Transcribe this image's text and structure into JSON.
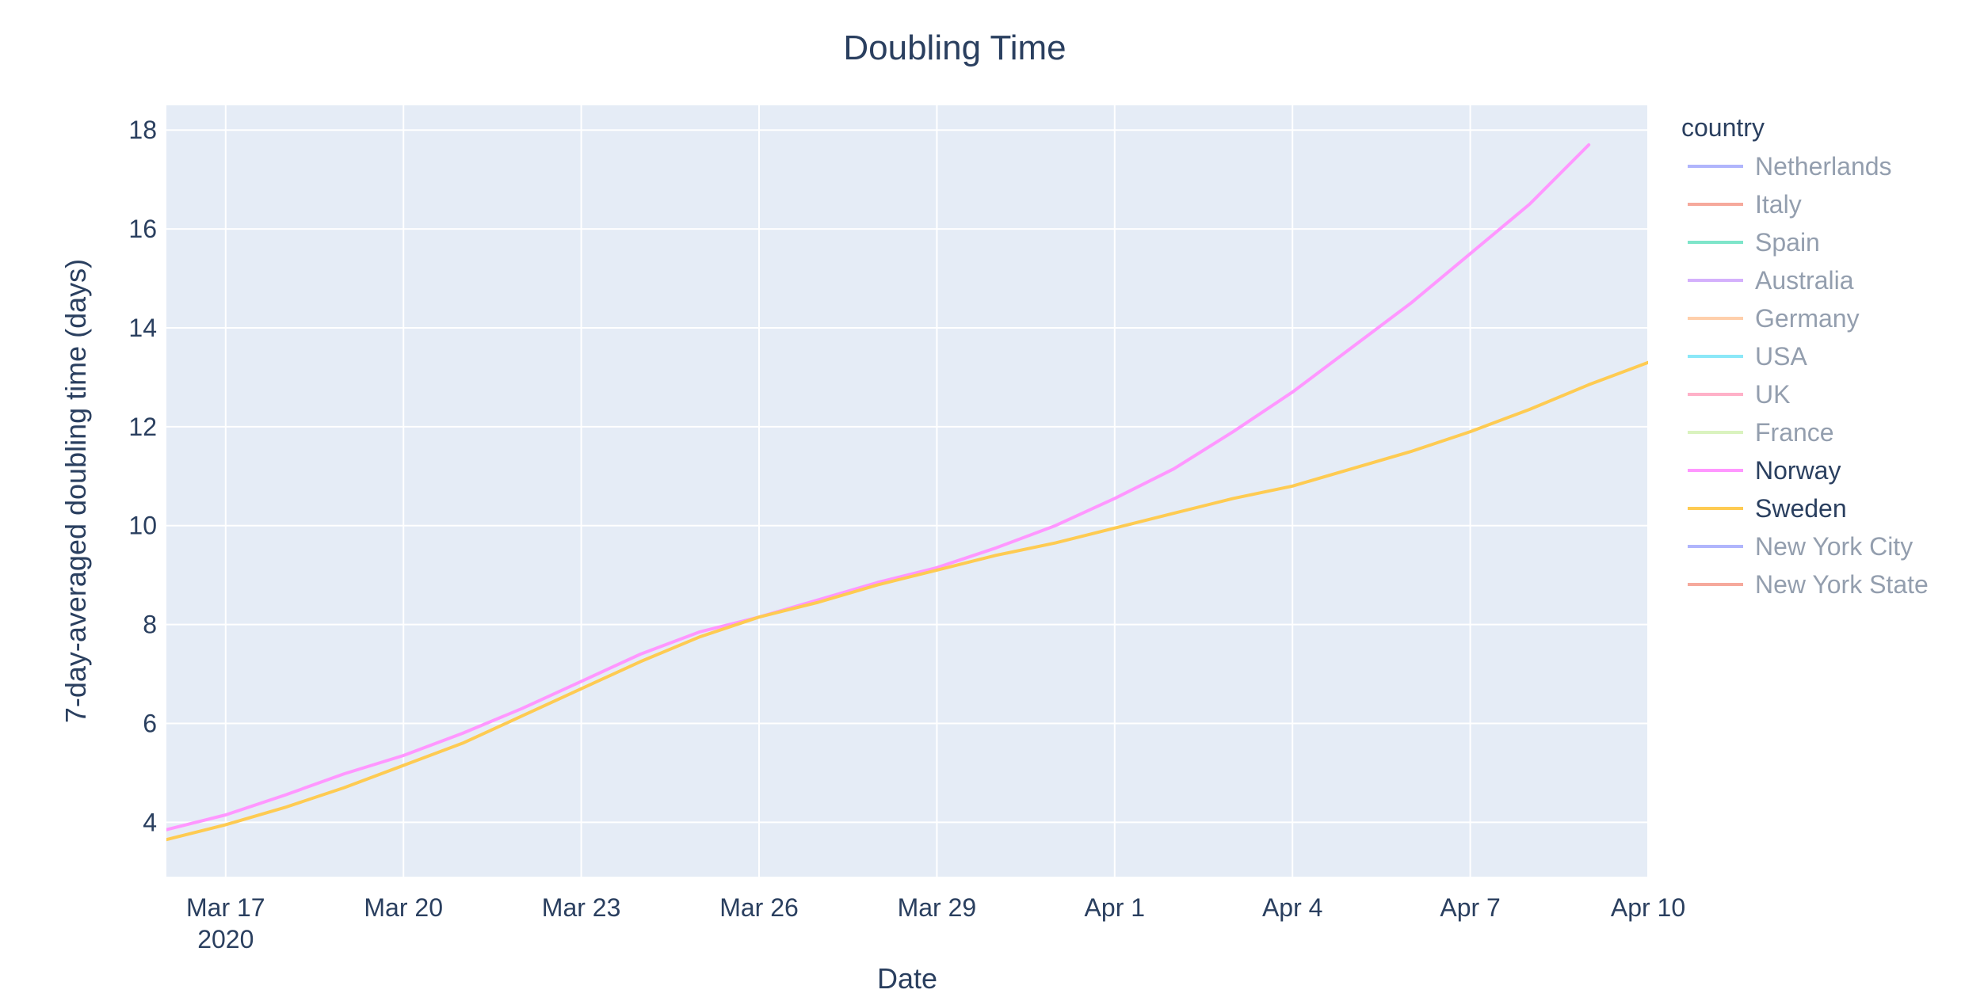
{
  "chart_data": {
    "type": "line",
    "title": "Doubling Time",
    "xlabel": "Date",
    "ylabel": "7-day-averaged doubling time (days)",
    "xlim": [
      "2020-03-16",
      "2020-04-10"
    ],
    "ylim": [
      2.9,
      18.5
    ],
    "x_ticks": [
      {
        "date": "2020-03-17",
        "label": "Mar 17",
        "sublabel": "2020"
      },
      {
        "date": "2020-03-20",
        "label": "Mar 20"
      },
      {
        "date": "2020-03-23",
        "label": "Mar 23"
      },
      {
        "date": "2020-03-26",
        "label": "Mar 26"
      },
      {
        "date": "2020-03-29",
        "label": "Mar 29"
      },
      {
        "date": "2020-04-01",
        "label": "Apr 1"
      },
      {
        "date": "2020-04-04",
        "label": "Apr 4"
      },
      {
        "date": "2020-04-07",
        "label": "Apr 7"
      },
      {
        "date": "2020-04-10",
        "label": "Apr 10"
      }
    ],
    "y_ticks": [
      4,
      6,
      8,
      10,
      12,
      14,
      16,
      18
    ],
    "grid": true,
    "background": "#e5ecf6",
    "legend": {
      "title": "country",
      "placement": "right",
      "entries": [
        {
          "name": "Netherlands",
          "color": "#636efa",
          "visible": false
        },
        {
          "name": "Italy",
          "color": "#ef553b",
          "visible": false
        },
        {
          "name": "Spain",
          "color": "#00cc96",
          "visible": false
        },
        {
          "name": "Australia",
          "color": "#ab63fa",
          "visible": false
        },
        {
          "name": "Germany",
          "color": "#ffa15a",
          "visible": false
        },
        {
          "name": "USA",
          "color": "#19d3f3",
          "visible": false
        },
        {
          "name": "UK",
          "color": "#ff6692",
          "visible": false
        },
        {
          "name": "France",
          "color": "#b6e880",
          "visible": false
        },
        {
          "name": "Norway",
          "color": "#ff97ff",
          "visible": true
        },
        {
          "name": "Sweden",
          "color": "#fecb52",
          "visible": true
        },
        {
          "name": "New York City",
          "color": "#636efa",
          "visible": false
        },
        {
          "name": "New York State",
          "color": "#ef553b",
          "visible": false
        }
      ]
    },
    "series": [
      {
        "name": "Norway",
        "color": "#ff97ff",
        "x": [
          "2020-03-16",
          "2020-03-17",
          "2020-03-18",
          "2020-03-19",
          "2020-03-20",
          "2020-03-21",
          "2020-03-22",
          "2020-03-23",
          "2020-03-24",
          "2020-03-25",
          "2020-03-26",
          "2020-03-27",
          "2020-03-28",
          "2020-03-29",
          "2020-03-30",
          "2020-03-31",
          "2020-04-01",
          "2020-04-02",
          "2020-04-03",
          "2020-04-04",
          "2020-04-05",
          "2020-04-06",
          "2020-04-07",
          "2020-04-08",
          "2020-04-09"
        ],
        "y": [
          3.85,
          4.15,
          4.55,
          4.98,
          5.35,
          5.8,
          6.3,
          6.85,
          7.4,
          7.85,
          8.15,
          8.5,
          8.85,
          9.15,
          9.55,
          10.0,
          10.55,
          11.15,
          11.9,
          12.7,
          13.6,
          14.5,
          15.5,
          16.5,
          17.7
        ]
      },
      {
        "name": "Sweden",
        "color": "#fecb52",
        "x": [
          "2020-03-16",
          "2020-03-17",
          "2020-03-18",
          "2020-03-19",
          "2020-03-20",
          "2020-03-21",
          "2020-03-22",
          "2020-03-23",
          "2020-03-24",
          "2020-03-25",
          "2020-03-26",
          "2020-03-27",
          "2020-03-28",
          "2020-03-29",
          "2020-03-30",
          "2020-03-31",
          "2020-04-01",
          "2020-04-02",
          "2020-04-03",
          "2020-04-04",
          "2020-04-05",
          "2020-04-06",
          "2020-04-07",
          "2020-04-08",
          "2020-04-09",
          "2020-04-10"
        ],
        "y": [
          3.65,
          3.95,
          4.3,
          4.7,
          5.15,
          5.6,
          6.15,
          6.7,
          7.25,
          7.75,
          8.15,
          8.45,
          8.8,
          9.1,
          9.4,
          9.65,
          9.95,
          10.25,
          10.55,
          10.8,
          11.15,
          11.5,
          11.9,
          12.35,
          12.85,
          13.3
        ]
      }
    ]
  }
}
